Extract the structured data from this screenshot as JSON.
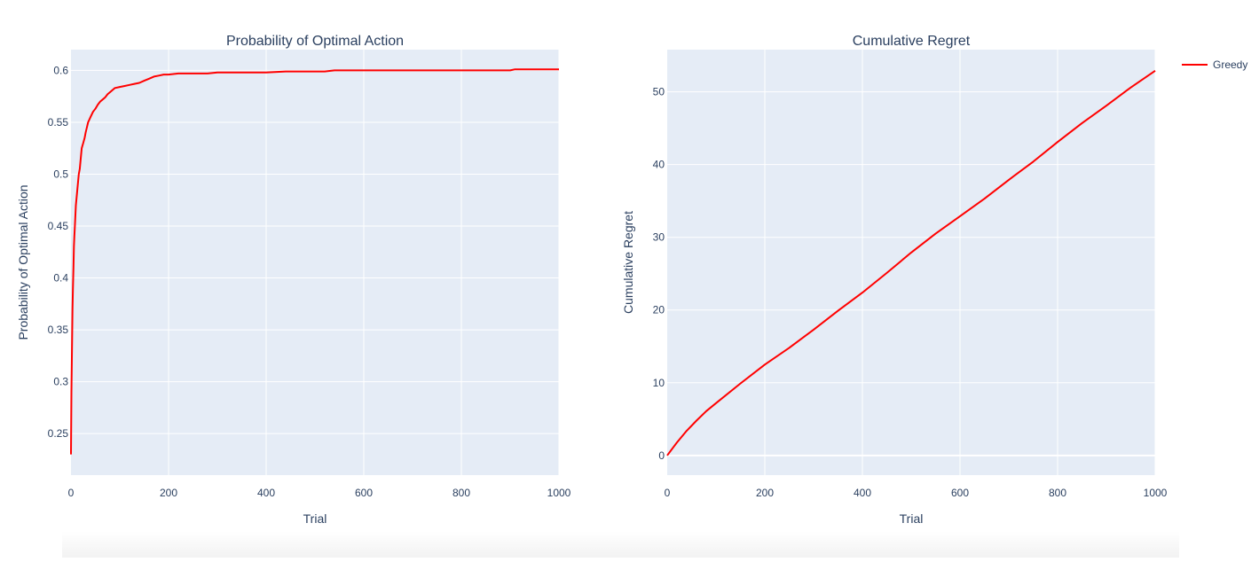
{
  "chart_data": [
    {
      "type": "line",
      "title": "Probability of Optimal Action",
      "xlabel": "Trial",
      "ylabel": "Probability of Optimal Action",
      "xlim": [
        0,
        1000
      ],
      "ylim": [
        0.21,
        0.62
      ],
      "grid": true,
      "x_ticks": [
        0,
        200,
        400,
        600,
        800,
        1000
      ],
      "x_tick_labels": [
        "0",
        "200",
        "400",
        "600",
        "800",
        "1000"
      ],
      "y_ticks": [
        0.25,
        0.3,
        0.35,
        0.4,
        0.45,
        0.5,
        0.55,
        0.6
      ],
      "y_tick_labels": [
        "0.25",
        "0.3",
        "0.35",
        "0.4",
        "0.45",
        "0.5",
        "0.55",
        "0.6"
      ],
      "series": [
        {
          "name": "Greedy",
          "color": "#ff0000",
          "x": [
            0,
            1,
            2,
            3,
            4,
            5,
            6,
            7,
            8,
            10,
            12,
            14,
            16,
            18,
            20,
            22,
            25,
            28,
            30,
            35,
            40,
            45,
            50,
            55,
            60,
            65,
            70,
            75,
            80,
            90,
            100,
            110,
            120,
            130,
            140,
            150,
            160,
            170,
            180,
            190,
            200,
            220,
            240,
            260,
            280,
            300,
            320,
            340,
            360,
            400,
            440,
            480,
            520,
            540,
            560,
            600,
            620,
            640,
            700,
            800,
            900,
            910,
            1000
          ],
          "y": [
            0.23,
            0.29,
            0.33,
            0.37,
            0.39,
            0.41,
            0.43,
            0.44,
            0.45,
            0.47,
            0.48,
            0.49,
            0.5,
            0.505,
            0.515,
            0.525,
            0.53,
            0.535,
            0.54,
            0.55,
            0.555,
            0.56,
            0.563,
            0.567,
            0.57,
            0.572,
            0.574,
            0.577,
            0.579,
            0.583,
            0.584,
            0.585,
            0.586,
            0.587,
            0.588,
            0.59,
            0.592,
            0.594,
            0.595,
            0.596,
            0.596,
            0.597,
            0.597,
            0.597,
            0.597,
            0.598,
            0.598,
            0.598,
            0.598,
            0.598,
            0.599,
            0.599,
            0.599,
            0.6,
            0.6,
            0.6,
            0.6,
            0.6,
            0.6,
            0.6,
            0.6,
            0.601,
            0.601
          ]
        }
      ]
    },
    {
      "type": "line",
      "title": "Cumulative Regret",
      "xlabel": "Trial",
      "ylabel": "Cumulative Regret",
      "xlim": [
        0,
        1000
      ],
      "ylim": [
        -2.7,
        55.8
      ],
      "grid": true,
      "legend_position": "top-right",
      "x_ticks": [
        0,
        200,
        400,
        600,
        800,
        1000
      ],
      "x_tick_labels": [
        "0",
        "200",
        "400",
        "600",
        "800",
        "1000"
      ],
      "y_ticks": [
        0,
        10,
        20,
        30,
        40,
        50
      ],
      "y_tick_labels": [
        "0",
        "10",
        "20",
        "30",
        "40",
        "50"
      ],
      "series": [
        {
          "name": "Greedy",
          "color": "#ff0000",
          "x": [
            0,
            20,
            40,
            60,
            80,
            100,
            150,
            200,
            250,
            300,
            350,
            400,
            450,
            500,
            550,
            600,
            650,
            700,
            750,
            800,
            850,
            900,
            950,
            1000
          ],
          "y": [
            0,
            1.8,
            3.4,
            4.8,
            6.1,
            7.2,
            9.9,
            12.5,
            14.8,
            17.3,
            19.9,
            22.4,
            25.1,
            27.9,
            30.5,
            32.9,
            35.3,
            37.9,
            40.4,
            43.1,
            45.7,
            48.1,
            50.6,
            52.9
          ]
        }
      ]
    }
  ],
  "legend": {
    "items": [
      {
        "label": "Greedy",
        "color": "#ff0000"
      }
    ]
  }
}
